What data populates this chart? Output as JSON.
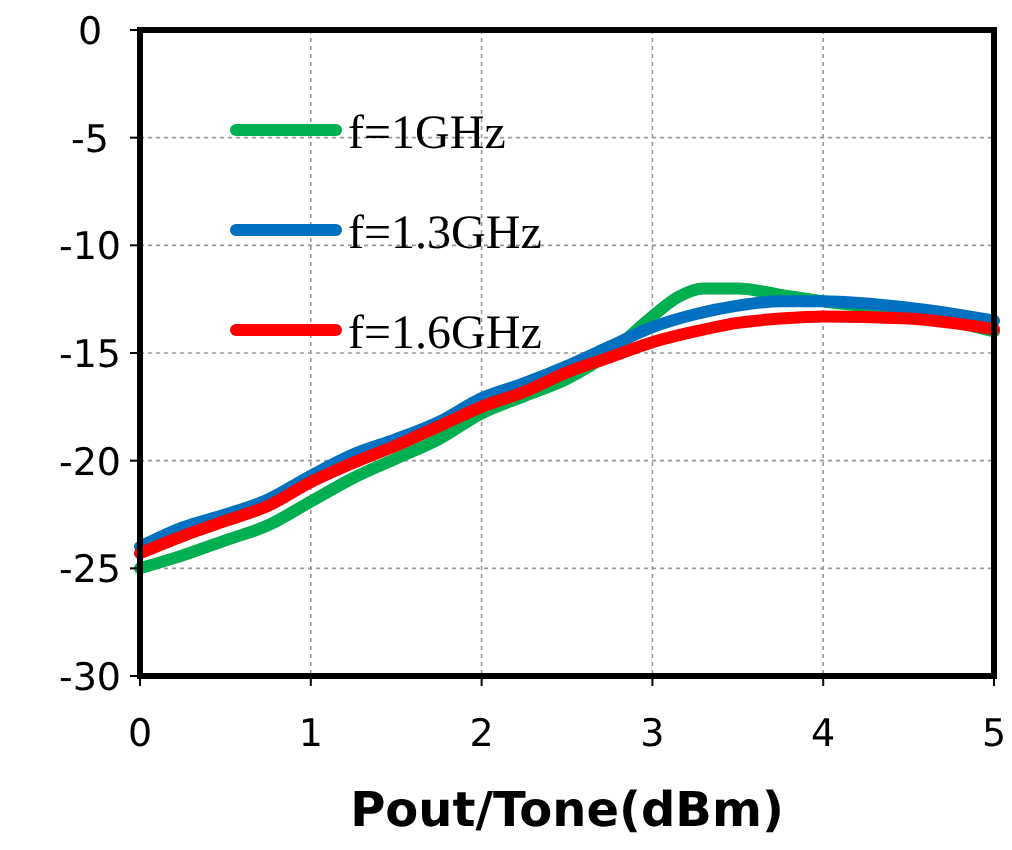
{
  "chart_data": {
    "type": "line",
    "xlabel": "Pout/Tone(dBm)",
    "x": [
      0,
      0.25,
      0.5,
      0.75,
      1,
      1.25,
      1.5,
      1.75,
      2,
      2.25,
      2.5,
      2.75,
      3,
      3.25,
      3.5,
      3.75,
      4,
      4.5,
      5
    ],
    "series": [
      {
        "name": "f=1GHz",
        "color": "#00b050",
        "x": [
          0,
          0.25,
          0.5,
          0.75,
          1,
          1.25,
          1.5,
          1.75,
          2,
          2.25,
          2.5,
          2.75,
          3,
          3.15,
          3.3,
          3.5,
          3.75,
          4,
          4.5,
          5
        ],
        "values": [
          -25,
          -24.4,
          -23.7,
          -23,
          -21.9,
          -20.8,
          -19.9,
          -19,
          -17.8,
          -17,
          -16.2,
          -15,
          -13.3,
          -12.4,
          -12,
          -12,
          -12.3,
          -12.6,
          -13.1,
          -14
        ]
      },
      {
        "name": "f=1.3GHz",
        "color": "#0070c0",
        "values": [
          -24,
          -23.1,
          -22.5,
          -21.8,
          -20.7,
          -19.7,
          -19,
          -18.2,
          -17.1,
          -16.4,
          -15.6,
          -14.7,
          -13.8,
          -13.2,
          -12.8,
          -12.6,
          -12.6,
          -12.9,
          -13.5
        ]
      },
      {
        "name": "f=1.6GHz",
        "color": "#ff0000",
        "values": [
          -24.3,
          -23.5,
          -22.8,
          -22.1,
          -21,
          -20.1,
          -19.3,
          -18.4,
          -17.5,
          -16.8,
          -15.9,
          -15.2,
          -14.5,
          -14,
          -13.6,
          -13.4,
          -13.3,
          -13.4,
          -13.9
        ]
      }
    ],
    "xlim": [
      0,
      5
    ],
    "xticks": [
      0,
      1,
      2,
      3,
      4,
      5
    ],
    "ylim": [
      -30,
      0
    ],
    "yticks": [
      -30,
      -25,
      -20,
      -15,
      -10,
      -5,
      0
    ],
    "grid": true,
    "legend": "top left",
    "marker": "none",
    "line_style": "solid"
  }
}
